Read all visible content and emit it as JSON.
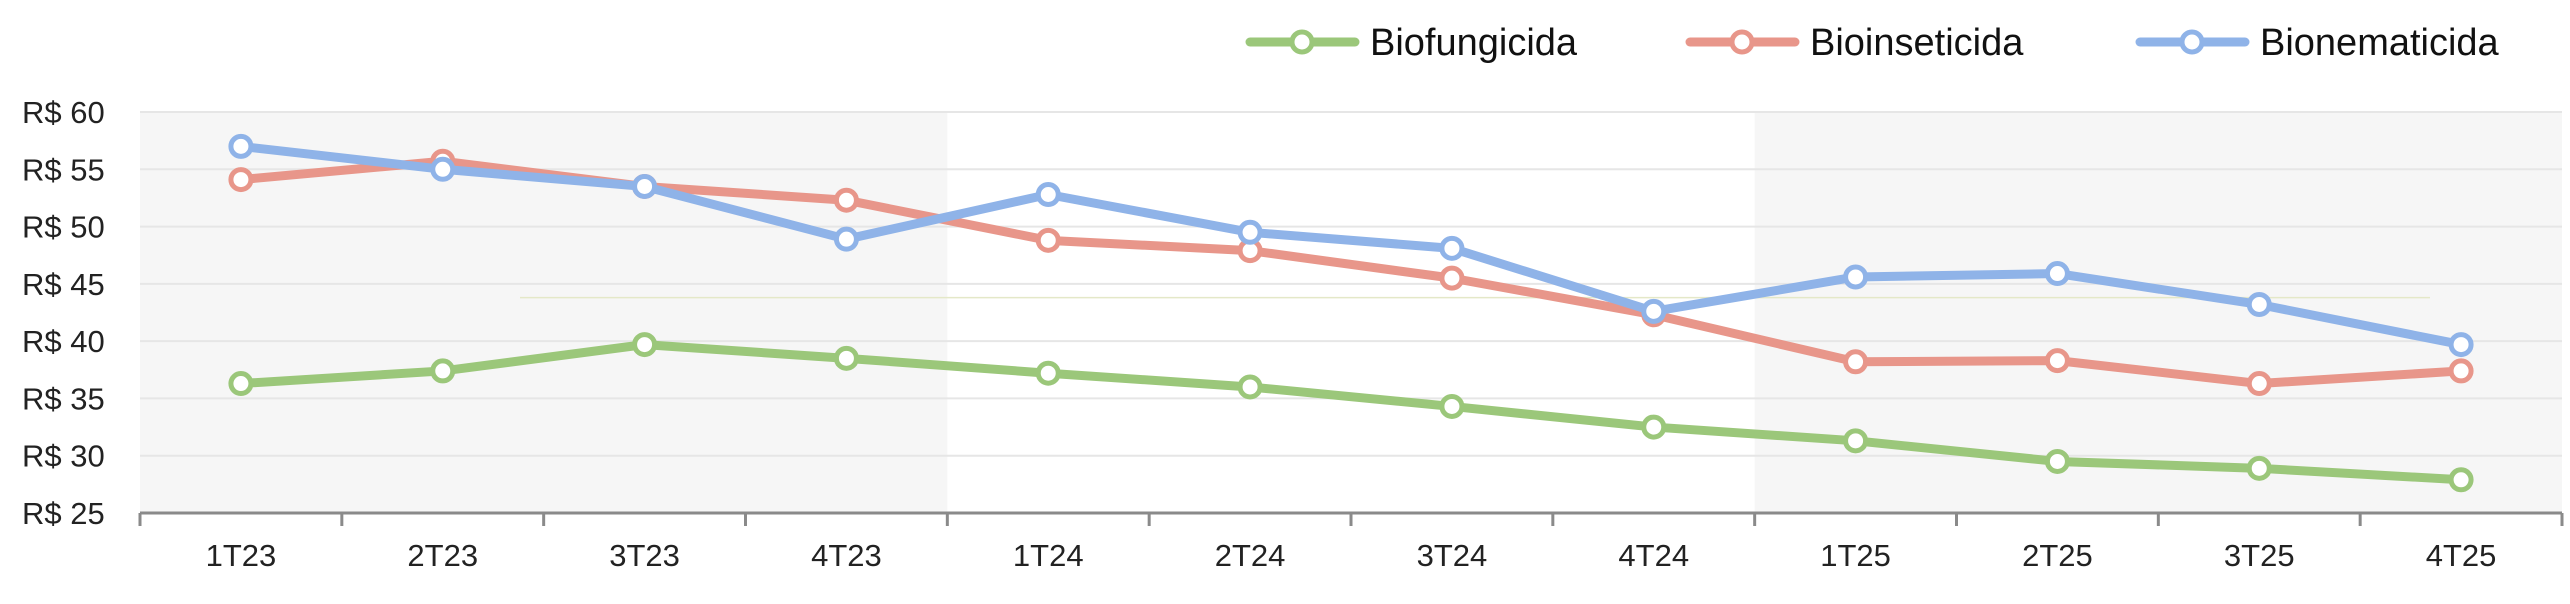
{
  "chart_data": {
    "type": "line",
    "title": "",
    "xlabel": "",
    "ylabel": "",
    "categories": [
      "1T23",
      "2T23",
      "3T23",
      "4T23",
      "1T24",
      "2T24",
      "3T24",
      "4T24",
      "1T25",
      "2T25",
      "3T25",
      "4T25"
    ],
    "ylim": [
      25,
      60
    ],
    "y_ticks": [
      25,
      30,
      35,
      40,
      45,
      50,
      55,
      60
    ],
    "y_tick_prefix": "R$ ",
    "grid": true,
    "legend_position": "top-right",
    "shaded_bands": [
      {
        "from_category": "1T23",
        "to_category": "4T23",
        "color": "#f6f6f6"
      },
      {
        "from_category": "1T25",
        "to_category": "4T25",
        "color": "#f6f6f6"
      }
    ],
    "series": [
      {
        "name": "Biofungicida",
        "color": "#9bc77a",
        "values": [
          36.3,
          37.4,
          39.7,
          38.5,
          37.2,
          36.0,
          34.3,
          32.5,
          31.3,
          29.5,
          28.9,
          27.9
        ]
      },
      {
        "name": "Bioinseticida",
        "color": "#e8968a",
        "values": [
          54.1,
          55.7,
          53.5,
          52.3,
          48.8,
          47.9,
          45.5,
          42.3,
          38.2,
          38.3,
          36.3,
          37.4
        ]
      },
      {
        "name": "Bionematicida",
        "color": "#8fb3e8",
        "values": [
          57.0,
          55.0,
          53.5,
          48.9,
          52.8,
          49.5,
          48.1,
          42.6,
          45.6,
          45.9,
          43.2,
          39.7
        ]
      }
    ]
  }
}
